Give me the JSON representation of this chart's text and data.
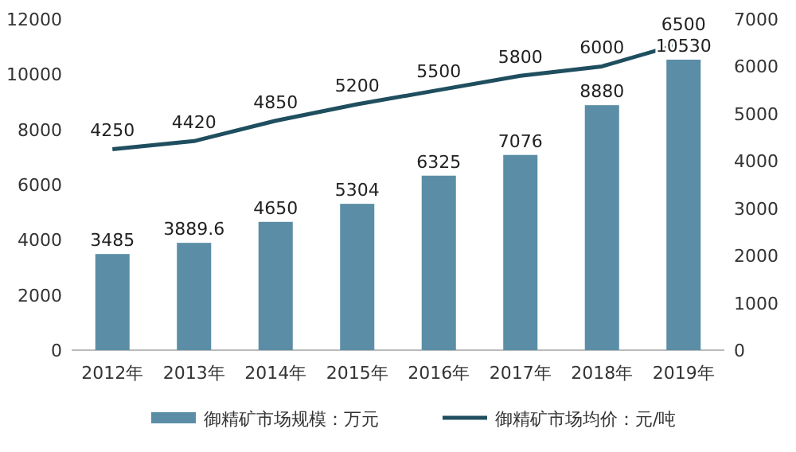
{
  "chart_data": {
    "type": "bar",
    "categories": [
      "2012年",
      "2013年",
      "2014年",
      "2015年",
      "2016年",
      "2017年",
      "2018年",
      "2019年"
    ],
    "series": [
      {
        "name": "御精矿市场规模：万元",
        "color": "#5b8ea6",
        "values": [
          3485,
          3889.6,
          4650,
          5304,
          6325,
          7076,
          8880,
          10530
        ]
      },
      {
        "name": "御精矿市场均价：元/吨",
        "type": "line",
        "axis": "y2",
        "color": "#1f4e5f",
        "values": [
          4250,
          4420,
          4850,
          5200,
          5500,
          5800,
          6000,
          6500
        ]
      }
    ],
    "ylim": [
      0,
      12000
    ],
    "yticks": [
      0,
      2000,
      4000,
      6000,
      8000,
      10000,
      12000
    ],
    "y2lim": [
      0,
      7000
    ],
    "y2ticks": [
      0,
      1000,
      2000,
      3000,
      4000,
      5000,
      6000,
      7000
    ],
    "data_labels": true,
    "legend": "bottom"
  }
}
